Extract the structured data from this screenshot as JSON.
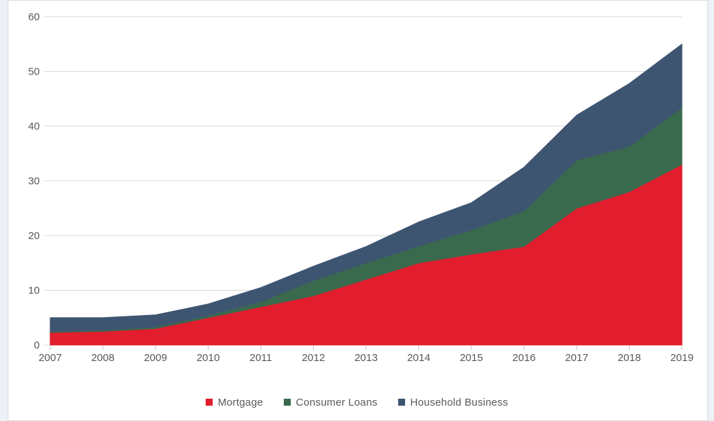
{
  "page": {
    "background": "#edf0f4",
    "panel_background": "#ffffff",
    "panel_border_color": "#dbdee3"
  },
  "axis": {
    "grid_color": "#d9d9d9",
    "tick_color": "#bfbfbf",
    "label_color": "#595959",
    "label_font_size": 15
  },
  "chart_data": {
    "type": "area",
    "stacked": true,
    "title": "",
    "xlabel": "",
    "ylabel": "",
    "grid": true,
    "legend_position": "bottom",
    "ylim": [
      0,
      60
    ],
    "y_ticks": [
      0,
      10,
      20,
      30,
      40,
      50,
      60
    ],
    "categories": [
      "2007",
      "2008",
      "2009",
      "2010",
      "2011",
      "2012",
      "2013",
      "2014",
      "2015",
      "2016",
      "2017",
      "2018",
      "2019"
    ],
    "series": [
      {
        "name": "Mortgage",
        "color": "#e11d2e",
        "values": [
          2.3,
          2.5,
          3.0,
          5.0,
          7.0,
          9.0,
          12.0,
          15.0,
          16.6,
          18.0,
          25.0,
          28.0,
          33.0
        ]
      },
      {
        "name": "Consumer Loans",
        "color": "#3a6a4d",
        "values": [
          0.2,
          0.2,
          0.3,
          0.4,
          0.9,
          2.8,
          3.0,
          3.1,
          4.4,
          6.5,
          8.8,
          8.3,
          10.4
        ]
      },
      {
        "name": "Household Business",
        "color": "#3e5572",
        "values": [
          2.5,
          2.3,
          2.2,
          2.1,
          2.6,
          2.6,
          3.0,
          4.4,
          5.0,
          8.0,
          8.2,
          11.5,
          11.6
        ]
      }
    ],
    "stacked_totals": [
      5.0,
      5.0,
      5.5,
      7.5,
      10.5,
      14.4,
      18.0,
      22.5,
      26.0,
      32.5,
      42.0,
      47.8,
      55.0
    ]
  },
  "legend": {
    "items": [
      {
        "label": "Mortgage"
      },
      {
        "label": "Consumer Loans"
      },
      {
        "label": "Household Business"
      }
    ]
  }
}
